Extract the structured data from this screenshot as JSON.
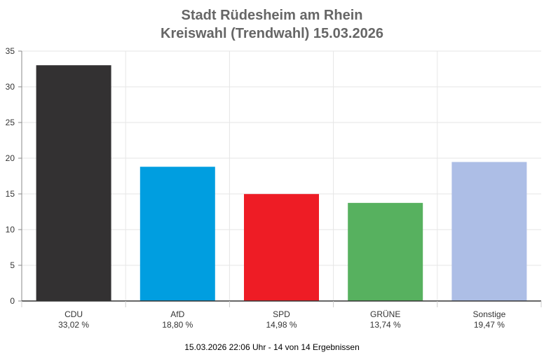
{
  "chart_data": {
    "type": "bar",
    "title": "Stadt Rüdesheim am Rhein",
    "subtitle": "Kreiswahl (Trendwahl) 15.03.2026",
    "categories": [
      "CDU",
      "AfD",
      "SPD",
      "GRÜNE",
      "Sonstige"
    ],
    "values": [
      33.02,
      18.8,
      14.98,
      13.74,
      19.47
    ],
    "value_labels": [
      "33,02 %",
      "18,80 %",
      "14,98 %",
      "13,74 %",
      "19,47 %"
    ],
    "colors": [
      "#333132",
      "#009ee0",
      "#ee1c25",
      "#57b15f",
      "#adbee6"
    ],
    "ylim": [
      0,
      35
    ],
    "yticks": [
      0,
      5,
      10,
      15,
      20,
      25,
      30,
      35
    ],
    "xlabel": "",
    "ylabel": "",
    "grid": true,
    "legend": "none"
  },
  "footer": "15.03.2026 22:06 Uhr - 14 von 14 Ergebnissen"
}
